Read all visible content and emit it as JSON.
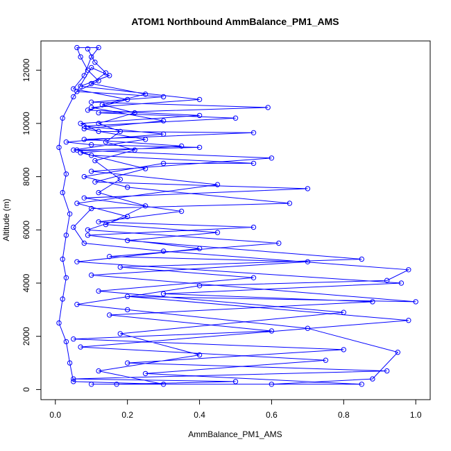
{
  "chart_data": {
    "type": "scatter",
    "title": "ATOM1 Northbound AmmBalance_PM1_AMS",
    "xlabel": "AmmBalance_PM1_AMS",
    "ylabel": "Altitude (m)",
    "xlim": [
      -0.04,
      1.04
    ],
    "ylim": [
      -380,
      13100
    ],
    "x_ticks": [
      0.0,
      0.2,
      0.4,
      0.6,
      0.8,
      1.0
    ],
    "x_tick_labels": [
      "0.0",
      "0.2",
      "0.4",
      "0.6",
      "0.8",
      "1.0"
    ],
    "y_ticks": [
      0,
      2000,
      4000,
      6000,
      8000,
      10000,
      12000
    ],
    "y_tick_labels": [
      "0",
      "2000",
      "4000",
      "6000",
      "8000",
      "10000",
      "12000"
    ],
    "series_color": "#0000ff",
    "marker": "open-circle",
    "connected": true,
    "grid": false,
    "series": [
      {
        "points": [
          [
            0.1,
            200
          ],
          [
            0.6,
            200
          ],
          [
            0.88,
            400
          ],
          [
            0.95,
            1400
          ],
          [
            0.7,
            2300
          ],
          [
            0.2,
            3000
          ],
          [
            0.06,
            3200
          ],
          [
            0.4,
            3900
          ],
          [
            0.92,
            4100
          ],
          [
            0.98,
            4500
          ],
          [
            0.3,
            5200
          ],
          [
            0.08,
            5500
          ],
          [
            0.05,
            6100
          ],
          [
            0.1,
            6800
          ],
          [
            0.65,
            7000
          ],
          [
            0.2,
            7600
          ],
          [
            0.08,
            8000
          ],
          [
            0.3,
            8500
          ],
          [
            0.55,
            8500
          ],
          [
            0.1,
            8800
          ],
          [
            0.06,
            9000
          ],
          [
            0.4,
            9100
          ],
          [
            0.1,
            9200
          ],
          [
            0.03,
            9300
          ],
          [
            0.3,
            9600
          ],
          [
            0.08,
            9900
          ],
          [
            0.5,
            10200
          ],
          [
            0.12,
            10400
          ],
          [
            0.59,
            10600
          ],
          [
            0.1,
            10800
          ],
          [
            0.3,
            11000
          ],
          [
            0.06,
            11200
          ],
          [
            0.12,
            11600
          ],
          [
            0.09,
            12000
          ],
          [
            0.07,
            12500
          ],
          [
            0.06,
            12850
          ],
          [
            0.12,
            12850
          ],
          [
            0.1,
            12500
          ],
          [
            0.08,
            11800
          ],
          [
            0.05,
            11300
          ],
          [
            0.2,
            10900
          ],
          [
            0.09,
            10500
          ],
          [
            0.4,
            10300
          ],
          [
            0.07,
            10000
          ],
          [
            0.12,
            9700
          ],
          [
            0.55,
            9650
          ],
          [
            0.08,
            9400
          ],
          [
            0.35,
            9150
          ],
          [
            0.07,
            8900
          ],
          [
            0.25,
            8300
          ],
          [
            0.11,
            7800
          ],
          [
            0.7,
            7550
          ],
          [
            0.08,
            7200
          ],
          [
            0.35,
            6700
          ],
          [
            0.12,
            6300
          ],
          [
            0.55,
            6100
          ],
          [
            0.09,
            5800
          ],
          [
            0.4,
            5300
          ],
          [
            0.06,
            4800
          ],
          [
            0.96,
            4000
          ],
          [
            0.3,
            3600
          ],
          [
            0.88,
            3300
          ],
          [
            0.15,
            2800
          ],
          [
            0.6,
            2200
          ],
          [
            0.05,
            1900
          ],
          [
            0.8,
            1500
          ],
          [
            0.2,
            1000
          ],
          [
            0.92,
            700
          ],
          [
            0.05,
            400
          ],
          [
            0.5,
            300
          ],
          [
            0.17,
            200
          ],
          [
            0.85,
            200
          ],
          [
            0.25,
            600
          ],
          [
            0.75,
            1100
          ],
          [
            0.07,
            1600
          ],
          [
            0.98,
            2600
          ],
          [
            0.2,
            3500
          ],
          [
            1.0,
            3300
          ],
          [
            0.1,
            4300
          ],
          [
            0.7,
            4800
          ],
          [
            0.15,
            5000
          ],
          [
            0.62,
            5500
          ],
          [
            0.09,
            6000
          ],
          [
            0.2,
            6500
          ],
          [
            0.06,
            7000
          ],
          [
            0.45,
            7700
          ],
          [
            0.1,
            8200
          ],
          [
            0.6,
            8700
          ],
          [
            0.05,
            9000
          ],
          [
            0.25,
            9400
          ],
          [
            0.08,
            9800
          ],
          [
            0.3,
            10100
          ],
          [
            0.1,
            10600
          ],
          [
            0.4,
            10900
          ],
          [
            0.07,
            11400
          ],
          [
            0.15,
            11800
          ],
          [
            0.1,
            12100
          ],
          [
            0.05,
            11000
          ],
          [
            0.02,
            10200
          ],
          [
            0.01,
            9100
          ],
          [
            0.03,
            8100
          ],
          [
            0.02,
            7400
          ],
          [
            0.04,
            6600
          ],
          [
            0.03,
            5800
          ],
          [
            0.02,
            4900
          ],
          [
            0.03,
            4200
          ],
          [
            0.02,
            3400
          ],
          [
            0.01,
            2500
          ],
          [
            0.03,
            1800
          ],
          [
            0.04,
            1000
          ],
          [
            0.05,
            300
          ],
          [
            0.3,
            200
          ],
          [
            0.12,
            700
          ],
          [
            0.4,
            1300
          ],
          [
            0.18,
            2100
          ],
          [
            0.8,
            2900
          ],
          [
            0.12,
            3700
          ],
          [
            0.55,
            4200
          ],
          [
            0.18,
            4600
          ],
          [
            0.85,
            4900
          ],
          [
            0.2,
            5600
          ],
          [
            0.45,
            5900
          ],
          [
            0.14,
            6200
          ],
          [
            0.25,
            6900
          ],
          [
            0.12,
            7400
          ],
          [
            0.18,
            7900
          ],
          [
            0.11,
            8600
          ],
          [
            0.22,
            9000
          ],
          [
            0.14,
            9300
          ],
          [
            0.18,
            9700
          ],
          [
            0.12,
            10000
          ],
          [
            0.22,
            10400
          ],
          [
            0.13,
            10700
          ],
          [
            0.25,
            11100
          ],
          [
            0.1,
            11500
          ],
          [
            0.14,
            11900
          ],
          [
            0.11,
            12300
          ],
          [
            0.09,
            12800
          ]
        ]
      }
    ]
  }
}
